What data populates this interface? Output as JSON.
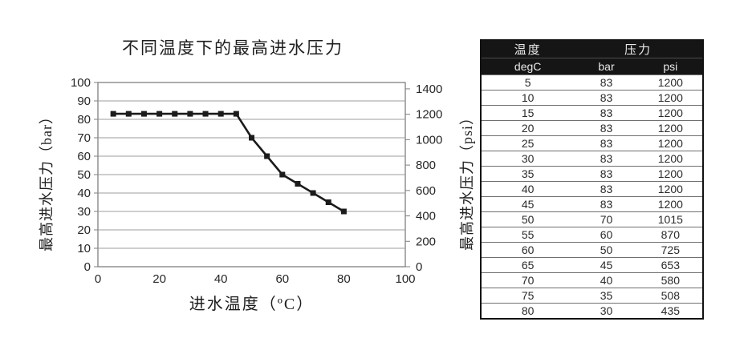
{
  "chart_data": {
    "type": "line",
    "title": "不同温度下的最高进水压力",
    "xlabel": "进水温度（ºC）",
    "ylabel_left": "最高进水压力（bar）",
    "ylabel_right": "最高进水压力（psi）",
    "x": [
      5,
      10,
      15,
      20,
      25,
      30,
      35,
      40,
      45,
      50,
      55,
      60,
      65,
      70,
      75,
      80
    ],
    "series": [
      {
        "name": "最高进水压力",
        "values": [
          83,
          83,
          83,
          83,
          83,
          83,
          83,
          83,
          83,
          70,
          60,
          50,
          45,
          40,
          35,
          30
        ]
      }
    ],
    "xlim": [
      0,
      100
    ],
    "xticks": [
      0,
      20,
      40,
      60,
      80,
      100
    ],
    "ylim_left": [
      0,
      100
    ],
    "yticks_left": [
      0,
      10,
      20,
      30,
      40,
      50,
      60,
      70,
      80,
      90,
      100
    ],
    "ylim_right": [
      0,
      1450
    ],
    "yticks_right": [
      0,
      200,
      400,
      600,
      800,
      1000,
      1200,
      1400
    ],
    "grid": "horizontal",
    "legend": "none",
    "line_color": "#1b1b1b",
    "grid_color": "#9c9c9c",
    "frame_color": "#7f7f7f",
    "tick_text_color": "#262626",
    "marker": "square"
  },
  "table": {
    "header_groups": [
      {
        "label": "温度"
      },
      {
        "label": "压力"
      }
    ],
    "columns": [
      "degC",
      "bar",
      "psi"
    ],
    "rows": [
      [
        5,
        83,
        1200
      ],
      [
        10,
        83,
        1200
      ],
      [
        15,
        83,
        1200
      ],
      [
        20,
        83,
        1200
      ],
      [
        25,
        83,
        1200
      ],
      [
        30,
        83,
        1200
      ],
      [
        35,
        83,
        1200
      ],
      [
        40,
        83,
        1200
      ],
      [
        45,
        83,
        1200
      ],
      [
        50,
        70,
        1015
      ],
      [
        55,
        60,
        870
      ],
      [
        60,
        50,
        725
      ],
      [
        65,
        45,
        653
      ],
      [
        70,
        40,
        580
      ],
      [
        75,
        35,
        508
      ],
      [
        80,
        30,
        435
      ]
    ]
  }
}
